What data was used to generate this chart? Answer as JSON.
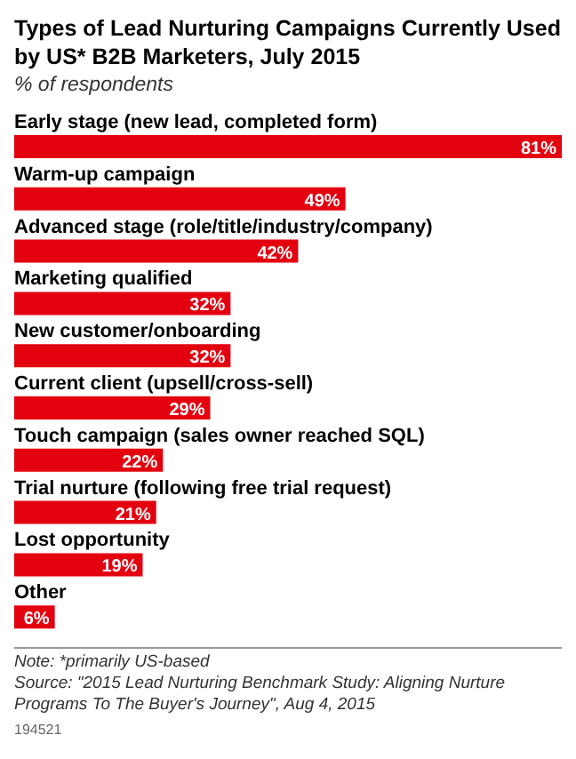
{
  "chart_data": {
    "type": "bar",
    "orientation": "horizontal",
    "title": "Types of Lead Nurturing Campaigns Currently Used by US* B2B Marketers, July 2015",
    "subtitle": "% of respondents",
    "categories": [
      "Early stage (new lead, completed form)",
      "Warm-up campaign",
      "Advanced stage (role/title/industry/company)",
      "Marketing qualified",
      "New customer/onboarding",
      "Current client (upsell/cross-sell)",
      "Touch campaign (sales owner reached SQL)",
      "Trial nurture (following free trial request)",
      "Lost opportunity",
      "Other"
    ],
    "values": [
      81,
      49,
      42,
      32,
      32,
      29,
      22,
      21,
      19,
      6
    ],
    "value_labels": [
      "81%",
      "49%",
      "42%",
      "32%",
      "32%",
      "29%",
      "22%",
      "21%",
      "19%",
      "6%"
    ],
    "color": "#e3000f",
    "annotations": [
      "Note: *primarily US-based",
      "Source: \"2015 Lead Nurturing Benchmark Study: Aligning Nurture Programs To The Buyer's Journey\", Aug 4, 2015",
      "194521"
    ]
  }
}
